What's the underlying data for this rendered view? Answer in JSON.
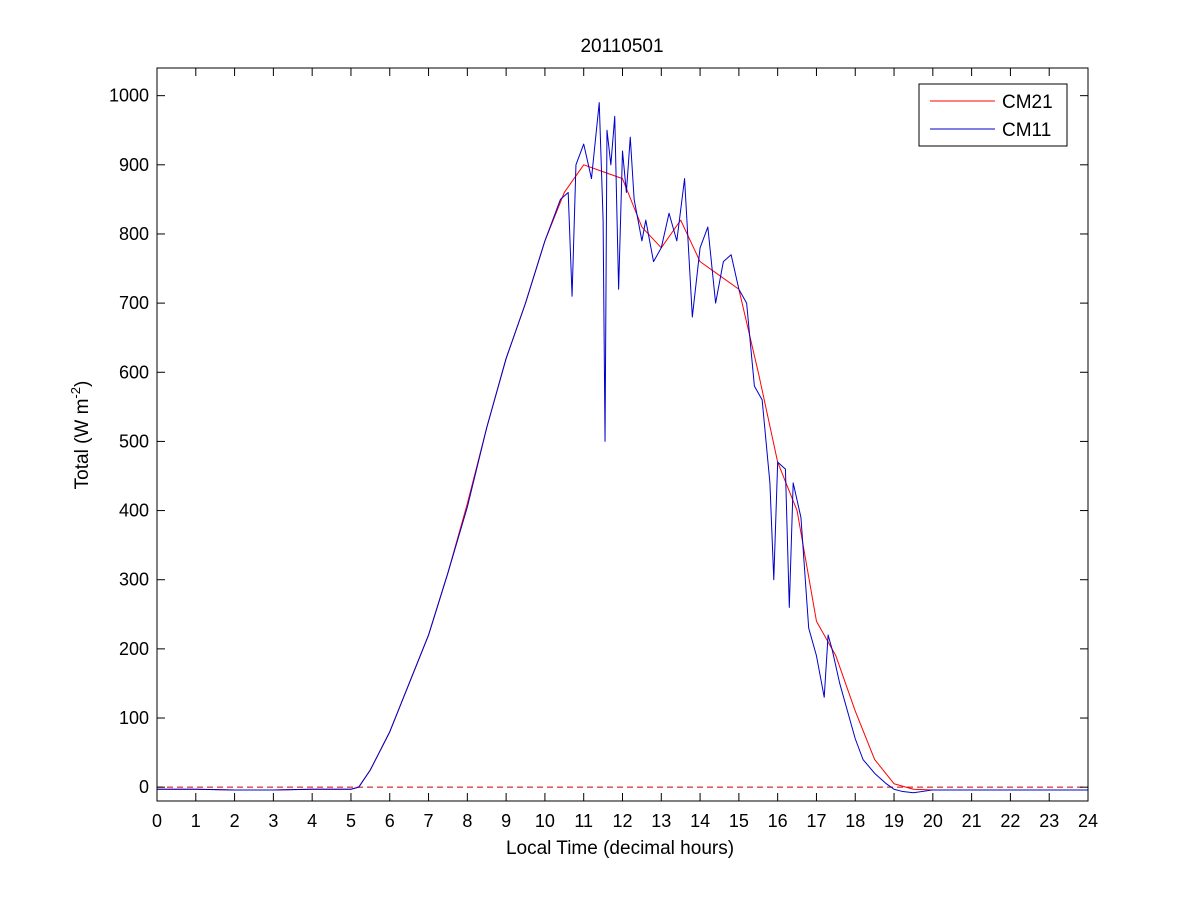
{
  "chart_data": {
    "type": "line",
    "title": "20110501",
    "xlabel": "Local Time (decimal hours)",
    "ylabel": {
      "prefix": "Total (W m",
      "superscript": "-2",
      "suffix": ")"
    },
    "xlim": [
      0,
      24
    ],
    "ylim": [
      -20,
      1040
    ],
    "x_ticks": [
      0,
      1,
      2,
      3,
      4,
      5,
      6,
      7,
      8,
      9,
      10,
      11,
      12,
      13,
      14,
      15,
      16,
      17,
      18,
      19,
      20,
      21,
      22,
      23,
      24
    ],
    "y_ticks": [
      0,
      100,
      200,
      300,
      400,
      500,
      600,
      700,
      800,
      900,
      1000
    ],
    "grid": false,
    "legend_position": "top-right",
    "reference_line": {
      "y": 0,
      "style": "dashed",
      "color": "#cc0000"
    },
    "series": [
      {
        "name": "CM21",
        "color": "#ff0000",
        "x": [
          0,
          1,
          2,
          3,
          4,
          5,
          5.2,
          5.5,
          6,
          6.5,
          7,
          7.5,
          8,
          8.5,
          9,
          9.5,
          10,
          10.5,
          11,
          11.5,
          12,
          12.5,
          13,
          13.5,
          14,
          14.5,
          15,
          15.5,
          16,
          16.5,
          17,
          17.5,
          18,
          18.5,
          19,
          19.5,
          20,
          21,
          22,
          23,
          24
        ],
        "y": [
          -3,
          -3,
          -4,
          -4,
          -3,
          -3,
          0,
          25,
          80,
          150,
          220,
          310,
          410,
          520,
          620,
          700,
          790,
          860,
          900,
          890,
          880,
          810,
          780,
          820,
          760,
          740,
          720,
          600,
          470,
          400,
          240,
          190,
          110,
          40,
          5,
          -3,
          -4,
          -4,
          -4,
          -4,
          -4
        ]
      },
      {
        "name": "CM11",
        "color": "#0000cc",
        "x": [
          0,
          1,
          2,
          3,
          4,
          5,
          5.2,
          5.5,
          6,
          6.5,
          7,
          7.5,
          8,
          8.5,
          9,
          9.5,
          10,
          10.2,
          10.4,
          10.6,
          10.7,
          10.8,
          11,
          11.2,
          11.4,
          11.5,
          11.55,
          11.6,
          11.7,
          11.8,
          11.9,
          12,
          12.1,
          12.2,
          12.3,
          12.5,
          12.6,
          12.8,
          13,
          13.2,
          13.4,
          13.6,
          13.8,
          14,
          14.2,
          14.4,
          14.6,
          14.8,
          15,
          15.2,
          15.4,
          15.6,
          15.8,
          15.9,
          16,
          16.2,
          16.3,
          16.4,
          16.6,
          16.8,
          17,
          17.2,
          17.3,
          17.4,
          17.6,
          17.8,
          18,
          18.2,
          18.5,
          18.8,
          19,
          19.2,
          19.5,
          20,
          21,
          22,
          23,
          24
        ],
        "y": [
          -3,
          -3,
          -4,
          -4,
          -3,
          -3,
          0,
          25,
          80,
          150,
          220,
          310,
          405,
          520,
          620,
          700,
          790,
          820,
          850,
          860,
          710,
          900,
          930,
          880,
          990,
          820,
          500,
          950,
          900,
          970,
          720,
          920,
          860,
          940,
          850,
          790,
          820,
          760,
          780,
          830,
          790,
          880,
          680,
          780,
          810,
          700,
          760,
          770,
          720,
          700,
          580,
          560,
          440,
          300,
          470,
          460,
          260,
          440,
          390,
          230,
          190,
          130,
          220,
          200,
          150,
          110,
          70,
          40,
          20,
          5,
          -3,
          -6,
          -8,
          -4,
          -4,
          -4,
          -4,
          -4
        ]
      }
    ]
  }
}
